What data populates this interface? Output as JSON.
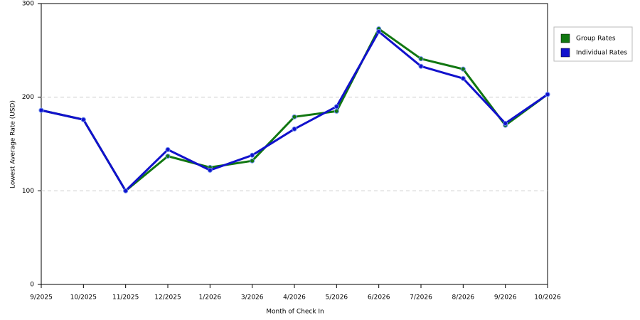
{
  "chart_data": {
    "type": "line",
    "x_label": "Month of Check In",
    "y_label": "Lowest Average Rate (USD)",
    "categories": [
      "9/2025",
      "10/2025",
      "11/2025",
      "12/2025",
      "1/2026",
      "3/2026",
      "4/2026",
      "5/2026",
      "6/2026",
      "7/2026",
      "8/2026",
      "9/2026",
      "10/2026"
    ],
    "series": [
      {
        "name": "Group Rates",
        "color": "#117711",
        "values": [
          186,
          176,
          100,
          137,
          125,
          132,
          179,
          185,
          273,
          241,
          230,
          170,
          203
        ]
      },
      {
        "name": "Individual Rates",
        "color": "#1111cc",
        "values": [
          186,
          176,
          100,
          144,
          122,
          138,
          166,
          190,
          270,
          233,
          220,
          172,
          203
        ]
      }
    ],
    "ylim": [
      0,
      300
    ],
    "yticks": [
      0,
      100,
      200,
      300
    ],
    "grid": true,
    "legend": "right"
  }
}
